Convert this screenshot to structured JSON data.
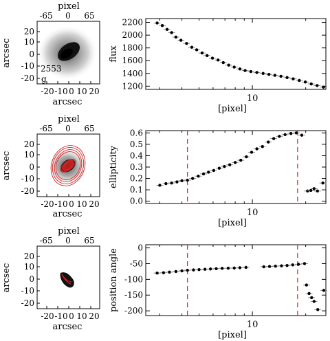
{
  "thumbs": [
    {
      "top_label": "pixel",
      "top_ticks": [
        "-65",
        "0",
        "65"
      ],
      "left_label": "arcsec",
      "left_ticks": [
        "20",
        "10",
        "0",
        "-10",
        "-20"
      ],
      "bottom_label": "arcsec",
      "bottom_ticks": [
        "-20",
        "-10",
        "0",
        "10",
        "20"
      ],
      "annotation": [
        "2553",
        "g"
      ]
    },
    {
      "top_label": "pixel",
      "top_ticks": [
        "-65",
        "0",
        "65"
      ],
      "left_label": "arcsec",
      "left_ticks": [
        "20",
        "10",
        "0",
        "-10",
        "-20"
      ],
      "bottom_label": "arcsec",
      "bottom_ticks": [
        "-20",
        "-10",
        "0",
        "10",
        "20"
      ]
    },
    {
      "top_label": "pixel",
      "top_ticks": [
        "-65",
        "0",
        "65"
      ],
      "left_label": "arcsec",
      "left_ticks": [
        "20",
        "10",
        "0",
        "-10",
        "-20"
      ],
      "bottom_label": "arcsec",
      "bottom_ticks": [
        "-20",
        "-10",
        "0",
        "10",
        "20"
      ]
    }
  ],
  "colors": {
    "axes": "#000000",
    "points": "#000000",
    "errorbars": "#8c8c8c",
    "marker_lines": "#d62020",
    "ellipses": "#d62020"
  },
  "chart_data": [
    {
      "type": "scatter",
      "xscale": "log",
      "xlabel": "[pixel]",
      "ylabel": "flux",
      "xlim": [
        2.5,
        26
      ],
      "ylim": [
        1150,
        2260
      ],
      "xticks": [
        {
          "value": 10,
          "label": "10"
        }
      ],
      "yticks": [
        {
          "value": 1200,
          "label": "1200"
        },
        {
          "value": 1400,
          "label": "1400"
        },
        {
          "value": 1600,
          "label": "1600"
        },
        {
          "value": 1800,
          "label": "1800"
        },
        {
          "value": 2000,
          "label": "2000"
        },
        {
          "value": 2200,
          "label": "2200"
        }
      ],
      "series": [
        {
          "points": [
            [
              2.9,
              2190
            ],
            [
              3.1,
              2150
            ],
            [
              3.3,
              2090
            ],
            [
              3.5,
              2040
            ],
            [
              3.7,
              1970
            ],
            [
              3.95,
              1920
            ],
            [
              4.25,
              1870
            ],
            [
              4.55,
              1810
            ],
            [
              4.85,
              1770
            ],
            [
              5.2,
              1720
            ],
            [
              5.55,
              1680
            ],
            [
              5.95,
              1640
            ],
            [
              6.4,
              1610
            ],
            [
              6.85,
              1570
            ],
            [
              7.35,
              1530
            ],
            [
              7.9,
              1500
            ],
            [
              8.5,
              1470
            ],
            [
              9.1,
              1445
            ],
            [
              9.8,
              1430
            ],
            [
              10.6,
              1415
            ],
            [
              11.5,
              1400
            ],
            [
              12.4,
              1385
            ],
            [
              13.4,
              1370
            ],
            [
              14.5,
              1355
            ],
            [
              15.7,
              1335
            ],
            [
              17.0,
              1315
            ],
            [
              18.4,
              1290
            ],
            [
              19.9,
              1265
            ],
            [
              21.5,
              1235
            ],
            [
              23.2,
              1210
            ],
            [
              25.2,
              1185
            ]
          ]
        }
      ]
    },
    {
      "type": "scatter",
      "xscale": "log",
      "xlabel": "[pixel]",
      "ylabel": "ellipticity",
      "xlim": [
        2.5,
        26
      ],
      "ylim": [
        -0.02,
        0.62
      ],
      "xticks": [
        {
          "value": 10,
          "label": "10"
        }
      ],
      "yticks": [
        {
          "value": 0.0,
          "label": "0.0"
        },
        {
          "value": 0.1,
          "label": "0.1"
        },
        {
          "value": 0.2,
          "label": "0.2"
        },
        {
          "value": 0.3,
          "label": "0.3"
        },
        {
          "value": 0.4,
          "label": "0.4"
        },
        {
          "value": 0.5,
          "label": "0.5"
        },
        {
          "value": 0.6,
          "label": "0.6"
        }
      ],
      "vlines": [
        4.3,
        18.0
      ],
      "series": [
        {
          "points": [
            [
              3.0,
              0.14
            ],
            [
              3.25,
              0.155
            ],
            [
              3.5,
              0.16
            ],
            [
              3.75,
              0.17
            ],
            [
              4.0,
              0.18
            ],
            [
              4.3,
              0.185
            ],
            [
              4.6,
              0.2
            ],
            [
              4.95,
              0.22
            ],
            [
              5.3,
              0.24
            ],
            [
              5.65,
              0.255
            ],
            [
              6.05,
              0.27
            ],
            [
              6.5,
              0.29
            ],
            [
              6.95,
              0.305
            ],
            [
              7.45,
              0.32
            ],
            [
              8.0,
              0.34
            ],
            [
              8.6,
              0.36
            ],
            [
              9.25,
              0.39
            ],
            [
              9.9,
              0.43
            ],
            [
              10.6,
              0.46
            ],
            [
              11.4,
              0.48
            ],
            [
              12.3,
              0.52
            ],
            [
              13.2,
              0.55
            ],
            [
              14.2,
              0.57
            ],
            [
              15.3,
              0.585
            ],
            [
              16.5,
              0.595
            ],
            [
              17.7,
              0.6
            ],
            [
              19.0,
              0.58
            ],
            [
              20.5,
              0.09
            ],
            [
              21.4,
              0.095
            ],
            [
              22.3,
              0.11
            ],
            [
              23.3,
              0.09
            ],
            [
              25.0,
              0.16
            ]
          ]
        }
      ]
    },
    {
      "type": "scatter",
      "xscale": "log",
      "xlabel": "[pixel]",
      "ylabel": "position angle",
      "xlim": [
        2.5,
        26
      ],
      "ylim": [
        -215,
        10
      ],
      "xticks": [
        {
          "value": 10,
          "label": "10"
        }
      ],
      "yticks": [
        {
          "value": 0,
          "label": "0"
        },
        {
          "value": -50,
          "label": "-50"
        },
        {
          "value": -100,
          "label": "-100"
        },
        {
          "value": -150,
          "label": "-150"
        },
        {
          "value": -200,
          "label": "-200"
        }
      ],
      "vlines": [
        4.3,
        18.0
      ],
      "series": [
        {
          "points": [
            [
              2.9,
              -80
            ],
            [
              3.15,
              -79
            ],
            [
              3.4,
              -77
            ],
            [
              3.7,
              -75
            ],
            [
              4.0,
              -73
            ],
            [
              4.3,
              -71
            ],
            [
              4.65,
              -70
            ],
            [
              5.0,
              -69
            ],
            [
              5.4,
              -68
            ],
            [
              5.8,
              -67
            ],
            [
              6.25,
              -66
            ],
            [
              6.75,
              -65
            ],
            [
              7.3,
              -64.5
            ],
            [
              7.9,
              -64
            ],
            [
              8.5,
              -63
            ],
            [
              9.2,
              -62
            ],
            [
              11.6,
              -60
            ],
            [
              12.5,
              -59
            ],
            [
              13.5,
              -58
            ],
            [
              14.6,
              -57
            ],
            [
              15.7,
              -56
            ],
            [
              16.9,
              -54
            ],
            [
              18.2,
              -52
            ],
            [
              19.7,
              -50
            ],
            [
              20.2,
              -118
            ],
            [
              20.9,
              -145
            ],
            [
              21.6,
              -158
            ],
            [
              22.3,
              -170
            ],
            [
              23.4,
              -196
            ],
            [
              25.3,
              -135
            ]
          ]
        }
      ]
    }
  ]
}
